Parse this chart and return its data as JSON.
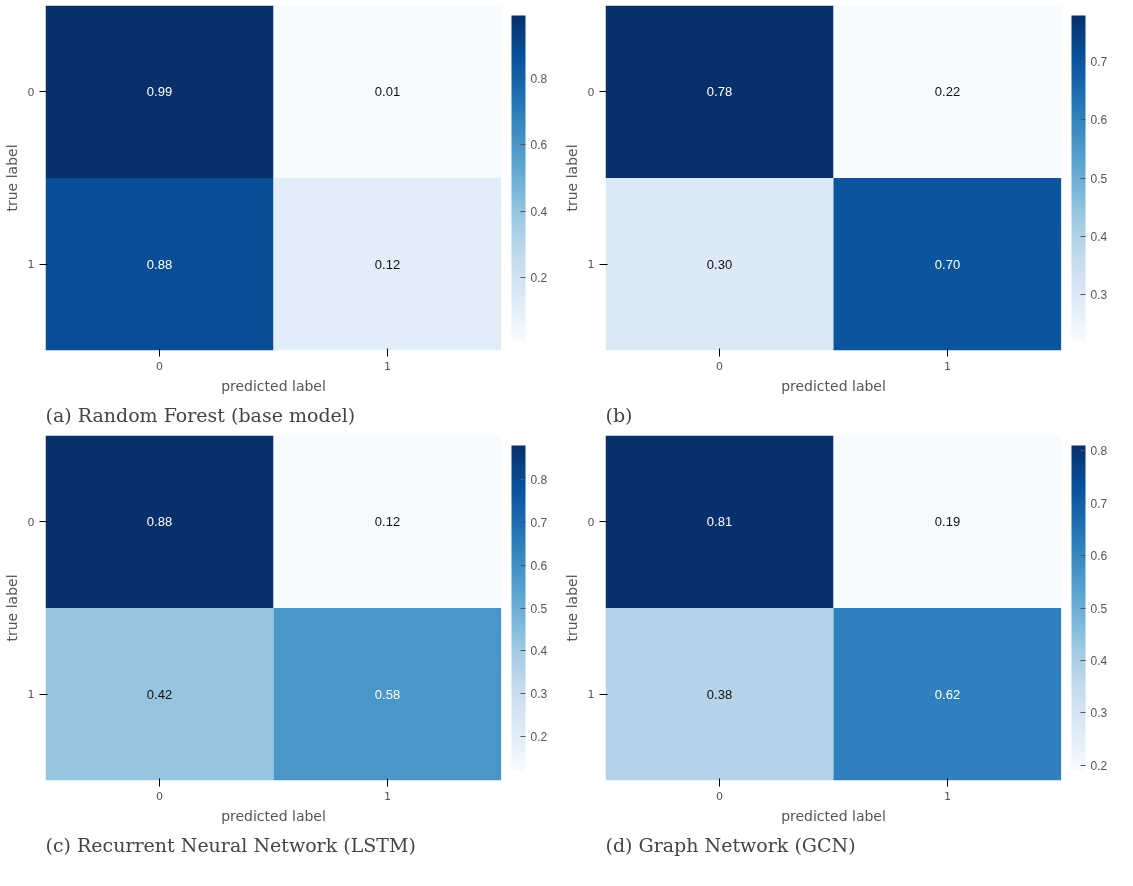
{
  "chart_data": [
    {
      "type": "heatmap",
      "title": "(a) Random Forest (base model)",
      "xlabel": "predicted label",
      "ylabel": "true label",
      "categories": [
        "0",
        "1"
      ],
      "y_categories": [
        "0",
        "1"
      ],
      "cells": [
        [
          0.99,
          0.01
        ],
        [
          0.88,
          0.12
        ]
      ],
      "cell_labels": [
        [
          "0.99",
          "0.01"
        ],
        [
          "0.88",
          "0.12"
        ]
      ],
      "clim": [
        0.01,
        0.99
      ],
      "cticks": [
        0.2,
        0.4,
        0.6,
        0.8
      ],
      "grid": false
    },
    {
      "type": "heatmap",
      "title": "(b)",
      "xlabel": "predicted label",
      "ylabel": "true label",
      "categories": [
        "0",
        "1"
      ],
      "y_categories": [
        "0",
        "1"
      ],
      "cells": [
        [
          0.78,
          0.22
        ],
        [
          0.3,
          0.7
        ]
      ],
      "cell_labels": [
        [
          "0.78",
          "0.22"
        ],
        [
          "0.30",
          "0.70"
        ]
      ],
      "clim": [
        0.22,
        0.78
      ],
      "cticks": [
        0.3,
        0.4,
        0.5,
        0.6,
        0.7
      ],
      "grid": false
    },
    {
      "type": "heatmap",
      "title": "(c) Recurrent Neural Network (LSTM)",
      "xlabel": "predicted label",
      "ylabel": "true label",
      "categories": [
        "0",
        "1"
      ],
      "y_categories": [
        "0",
        "1"
      ],
      "cells": [
        [
          0.88,
          0.12
        ],
        [
          0.42,
          0.58
        ]
      ],
      "cell_labels": [
        [
          "0.88",
          "0.12"
        ],
        [
          "0.42",
          "0.58"
        ]
      ],
      "clim": [
        0.12,
        0.88
      ],
      "cticks": [
        0.2,
        0.3,
        0.4,
        0.5,
        0.6,
        0.7,
        0.8
      ],
      "grid": false
    },
    {
      "type": "heatmap",
      "title": "(d) Graph Network (GCN)",
      "xlabel": "predicted label",
      "ylabel": "true label",
      "categories": [
        "0",
        "1"
      ],
      "y_categories": [
        "0",
        "1"
      ],
      "cells": [
        [
          0.81,
          0.19
        ],
        [
          0.38,
          0.62
        ]
      ],
      "cell_labels": [
        [
          "0.81",
          "0.19"
        ],
        [
          "0.38",
          "0.62"
        ]
      ],
      "clim": [
        0.19,
        0.81
      ],
      "cticks": [
        0.2,
        0.3,
        0.4,
        0.5,
        0.6,
        0.7,
        0.8
      ],
      "grid": false
    }
  ]
}
